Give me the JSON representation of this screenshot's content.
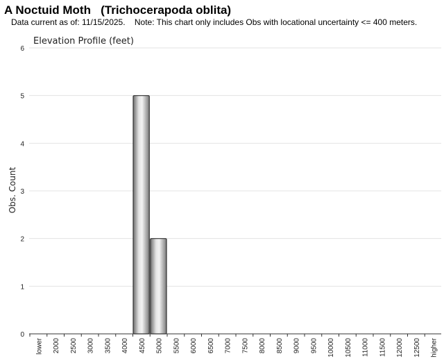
{
  "header": {
    "title": "A Noctuid Moth   (Trichocerapoda oblita)",
    "note": "Data current as of: 11/15/2025.    Note: This chart only includes Obs with locational uncertainty <= 400 meters."
  },
  "chart_data": {
    "type": "bar",
    "title": "Elevation Profile (feet)",
    "xlabel": "",
    "ylabel": "Obs. Count",
    "ylim": [
      0,
      6
    ],
    "yticks": [
      0,
      1,
      2,
      3,
      4,
      5,
      6
    ],
    "grid": true,
    "legend": "none",
    "bar_color": "#b0b0b0",
    "categories": [
      "lower",
      "2000",
      "2500",
      "3000",
      "3500",
      "4000",
      "4500",
      "5000",
      "5500",
      "6000",
      "6500",
      "7000",
      "7500",
      "8000",
      "8500",
      "9000",
      "9500",
      "10000",
      "10500",
      "11000",
      "11500",
      "12000",
      "12500",
      "higher"
    ],
    "values": [
      0,
      0,
      0,
      0,
      0,
      0,
      5,
      2,
      0,
      0,
      0,
      0,
      0,
      0,
      0,
      0,
      0,
      0,
      0,
      0,
      0,
      0,
      0,
      0
    ]
  }
}
